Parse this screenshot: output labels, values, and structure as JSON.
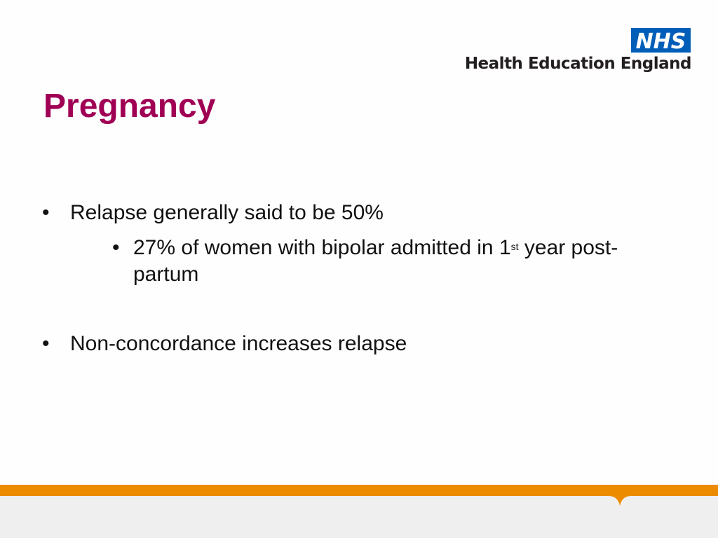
{
  "header": {
    "logo_text": "NHS",
    "org_name": "Health Education England",
    "colors": {
      "logo_blue": "#005eb8",
      "footer_orange": "#ed8b00"
    }
  },
  "slide": {
    "title": "Pregnancy",
    "title_color": "#a00054",
    "bullets": [
      {
        "dot": "•",
        "text": "Relapse generally said to be 50%",
        "sub": [
          {
            "dot": "•",
            "text_before": "27% of women with bipolar admitted in 1",
            "superscript": "st",
            "text_after": " year post-partum"
          }
        ]
      },
      {
        "dot": "•",
        "text": "Non-concordance increases relapse"
      }
    ]
  }
}
